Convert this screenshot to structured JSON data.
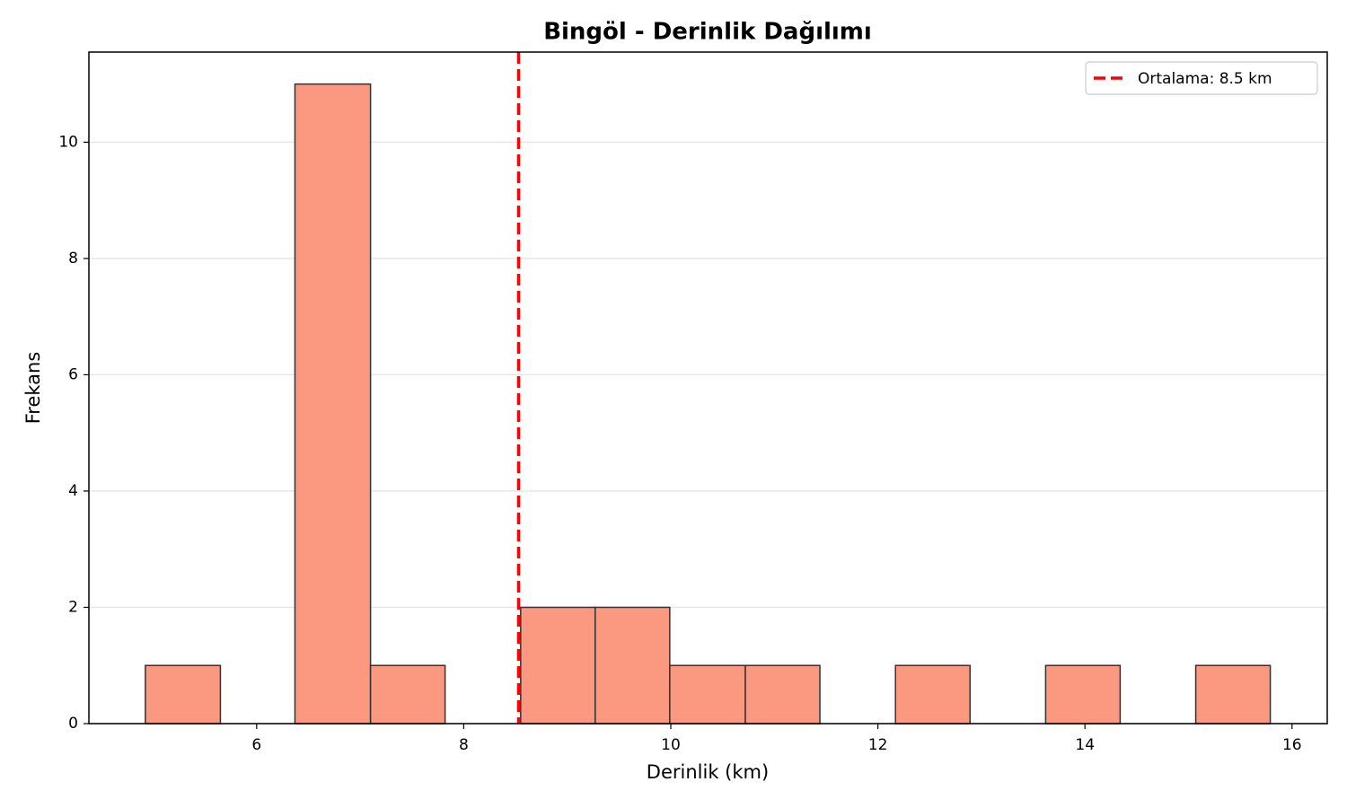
{
  "chart_data": {
    "type": "histogram",
    "title": "Bingöl - Derinlik Dağılımı",
    "xlabel": "Derinlik (km)",
    "ylabel": "Frekans",
    "bins": [
      4.925,
      5.65,
      6.37,
      7.1,
      7.82,
      8.55,
      9.27,
      9.99,
      10.72,
      11.44,
      12.17,
      12.89,
      13.62,
      14.34,
      15.07,
      15.79
    ],
    "counts": [
      1,
      0,
      11,
      1,
      0,
      2,
      2,
      1,
      1,
      0,
      1,
      0,
      1,
      0,
      1
    ],
    "color": "#fa9880",
    "edgecolor": "#333333",
    "xlim": [
      4.38,
      16.34
    ],
    "xticks": [
      6,
      8,
      10,
      12,
      14,
      16
    ],
    "ylim": [
      0,
      11.55
    ],
    "yticks": [
      0,
      2,
      4,
      6,
      8,
      10
    ],
    "grid": "y",
    "mean_line": {
      "value": 8.53,
      "label": "Ortalama: 8.5 km",
      "color": "#ff0000"
    },
    "legend": "upper right"
  }
}
